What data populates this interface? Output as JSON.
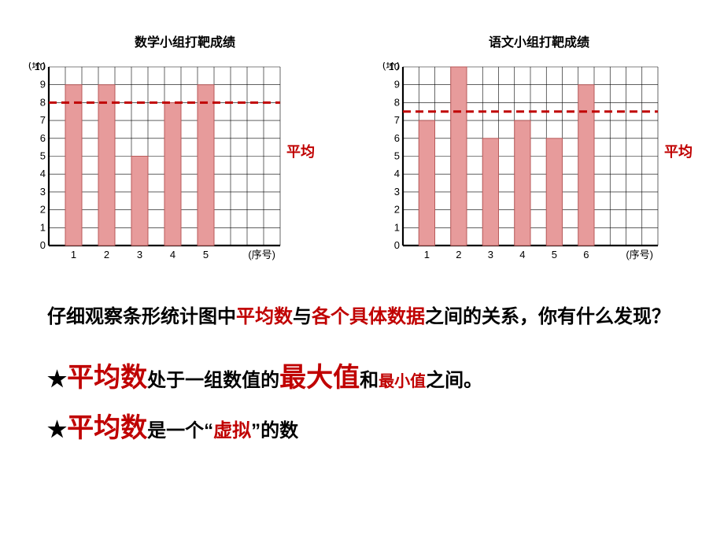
{
  "chart_left": {
    "title": "数学小组打靶成绩",
    "y_label": "(环)",
    "x_label": "(序号)",
    "y_max": 10,
    "grid_cols": 14,
    "categories": [
      "1",
      "2",
      "3",
      "4",
      "5"
    ],
    "values": [
      9,
      9,
      5,
      8,
      9
    ],
    "bar_color": "#e79b9b",
    "bar_border": "#b85a5a",
    "grid_line": "#000000",
    "avg_value": 8,
    "avg_line_color": "#c00000",
    "avg_text": "平均",
    "bg": "#ffffff",
    "label_fontsize": 13
  },
  "chart_right": {
    "title": "语文小组打靶成绩",
    "y_label": "(环)",
    "x_label": "(序号)",
    "y_max": 10,
    "grid_cols": 16,
    "categories": [
      "1",
      "2",
      "3",
      "4",
      "5",
      "6"
    ],
    "values": [
      7,
      10,
      6,
      7,
      6,
      9
    ],
    "bar_color": "#e79b9b",
    "bar_border": "#b85a5a",
    "grid_line": "#000000",
    "avg_value": 7.5,
    "avg_line_color": "#c00000",
    "avg_text": "平均",
    "bg": "#ffffff",
    "label_fontsize": 13
  },
  "question_parts": {
    "p1": "仔细观察条形统计图中",
    "p2": "平均数",
    "p3": "与",
    "p4": "各个具体数据",
    "p5": "之间的关系，你有什么发现？"
  },
  "stmt1_parts": {
    "star": "★",
    "p1": "平均数",
    "p2": "处于一组数值的",
    "p3": "最大值",
    "p4": "和",
    "p5": "最小值",
    "p6": "之间。"
  },
  "stmt2_parts": {
    "star": "★",
    "p1": "平均数",
    "p2": "是一个“",
    "p3": "虚拟",
    "p4": "”的数"
  }
}
